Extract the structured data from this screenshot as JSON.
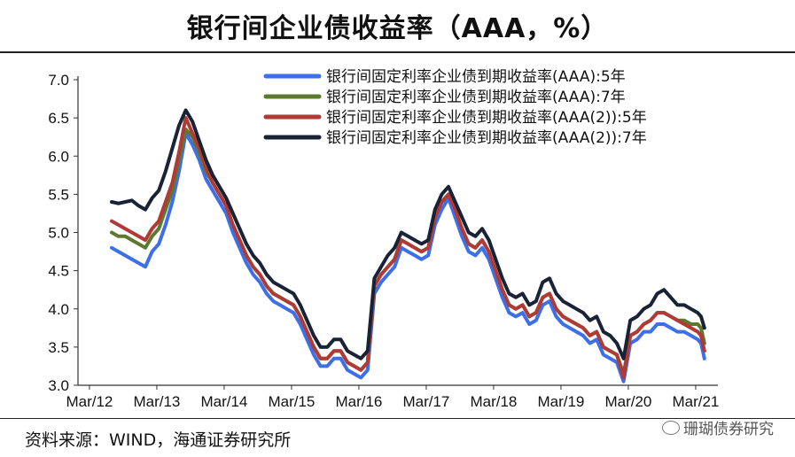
{
  "title": "银行间企业债收益率（AAA，%）",
  "source": "资料来源：WIND，海通证券研究所",
  "watermark": "珊瑚债券研究",
  "chart_data": {
    "type": "line",
    "title": "银行间企业债收益率（AAA，%）",
    "ylim": [
      3.0,
      7.0
    ],
    "yticks": [
      "7.0",
      "6.5",
      "6.0",
      "5.5",
      "5.0",
      "4.5",
      "4.0",
      "3.5",
      "3.0"
    ],
    "xlim": [
      2012.0,
      2021.5
    ],
    "xticks": [
      {
        "label": "Mar/12",
        "x": 2012.17
      },
      {
        "label": "Mar/13",
        "x": 2013.17
      },
      {
        "label": "Mar/14",
        "x": 2014.17
      },
      {
        "label": "Mar/15",
        "x": 2015.17
      },
      {
        "label": "Mar/16",
        "x": 2016.17
      },
      {
        "label": "Mar/17",
        "x": 2017.17
      },
      {
        "label": "Mar/18",
        "x": 2018.17
      },
      {
        "label": "Mar/19",
        "x": 2019.17
      },
      {
        "label": "Mar/20",
        "x": 2020.17
      },
      {
        "label": "Mar/21",
        "x": 2021.17
      }
    ],
    "legend_position": "top-right",
    "x": [
      2012.5,
      2012.6,
      2012.7,
      2012.8,
      2012.9,
      2013.0,
      2013.1,
      2013.2,
      2013.3,
      2013.4,
      2013.5,
      2013.6,
      2013.7,
      2013.8,
      2013.9,
      2014.0,
      2014.1,
      2014.2,
      2014.3,
      2014.4,
      2014.5,
      2014.6,
      2014.7,
      2014.8,
      2014.9,
      2015.0,
      2015.1,
      2015.2,
      2015.3,
      2015.4,
      2015.5,
      2015.6,
      2015.7,
      2015.8,
      2015.9,
      2016.0,
      2016.1,
      2016.2,
      2016.3,
      2016.4,
      2016.5,
      2016.6,
      2016.7,
      2016.8,
      2016.9,
      2017.0,
      2017.1,
      2017.2,
      2017.3,
      2017.4,
      2017.5,
      2017.6,
      2017.7,
      2017.8,
      2017.9,
      2018.0,
      2018.1,
      2018.2,
      2018.3,
      2018.4,
      2018.5,
      2018.6,
      2018.7,
      2018.8,
      2018.9,
      2019.0,
      2019.1,
      2019.2,
      2019.3,
      2019.4,
      2019.5,
      2019.6,
      2019.7,
      2019.8,
      2019.9,
      2020.0,
      2020.1,
      2020.2,
      2020.3,
      2020.4,
      2020.5,
      2020.6,
      2020.7,
      2020.8,
      2020.9,
      2021.0,
      2021.1,
      2021.2,
      2021.25,
      2021.3
    ],
    "series": [
      {
        "name": "银行间固定利率企业债到期收益率(AAA):5年",
        "color": "#3c6fe8",
        "values": [
          4.8,
          4.75,
          4.7,
          4.65,
          4.6,
          4.55,
          4.75,
          4.85,
          5.1,
          5.4,
          5.8,
          6.3,
          6.15,
          5.95,
          5.7,
          5.55,
          5.4,
          5.25,
          5.0,
          4.8,
          4.6,
          4.45,
          4.35,
          4.2,
          4.1,
          4.05,
          4.0,
          3.95,
          3.8,
          3.6,
          3.4,
          3.25,
          3.25,
          3.35,
          3.35,
          3.2,
          3.15,
          3.1,
          3.2,
          4.2,
          4.35,
          4.45,
          4.55,
          4.8,
          4.75,
          4.7,
          4.65,
          4.7,
          5.1,
          5.3,
          5.45,
          5.2,
          4.95,
          4.75,
          4.7,
          4.8,
          4.65,
          4.4,
          4.15,
          3.95,
          3.9,
          3.95,
          3.8,
          3.85,
          4.05,
          4.1,
          3.9,
          3.8,
          3.75,
          3.7,
          3.65,
          3.55,
          3.6,
          3.4,
          3.35,
          3.3,
          3.05,
          3.55,
          3.6,
          3.7,
          3.7,
          3.8,
          3.8,
          3.75,
          3.7,
          3.7,
          3.65,
          3.6,
          3.55,
          3.35
        ]
      },
      {
        "name": "银行间固定利率企业债到期收益率(AAA):7年",
        "color": "#5b7a2e",
        "values": [
          5.0,
          4.95,
          4.95,
          4.9,
          4.85,
          4.8,
          4.95,
          5.05,
          5.3,
          5.55,
          5.95,
          6.35,
          6.25,
          6.05,
          5.8,
          5.65,
          5.5,
          5.35,
          5.1,
          4.9,
          4.7,
          4.55,
          4.45,
          4.3,
          4.2,
          4.15,
          4.1,
          4.05,
          3.9,
          3.7,
          3.5,
          3.35,
          3.35,
          3.45,
          3.45,
          3.3,
          3.25,
          3.2,
          3.3,
          4.3,
          4.45,
          4.55,
          4.65,
          4.9,
          4.85,
          4.8,
          4.75,
          4.8,
          5.2,
          5.4,
          5.5,
          5.3,
          5.05,
          4.85,
          4.8,
          4.9,
          4.75,
          4.5,
          4.25,
          4.05,
          4.0,
          4.05,
          3.9,
          3.95,
          4.15,
          4.2,
          4.0,
          3.9,
          3.85,
          3.8,
          3.75,
          3.65,
          3.7,
          3.5,
          3.45,
          3.4,
          3.15,
          3.65,
          3.7,
          3.8,
          3.85,
          3.95,
          3.95,
          3.9,
          3.85,
          3.85,
          3.8,
          3.8,
          3.75,
          3.55
        ]
      },
      {
        "name": "银行间固定利率企业债到期收益率(AAA(2)):5年",
        "color": "#b03a35",
        "values": [
          5.15,
          5.1,
          5.05,
          5.0,
          4.95,
          4.9,
          5.05,
          5.15,
          5.4,
          5.65,
          6.05,
          6.5,
          6.3,
          6.1,
          5.85,
          5.65,
          5.5,
          5.35,
          5.1,
          4.9,
          4.7,
          4.55,
          4.45,
          4.3,
          4.2,
          4.15,
          4.1,
          4.05,
          3.9,
          3.7,
          3.5,
          3.35,
          3.35,
          3.45,
          3.45,
          3.3,
          3.25,
          3.2,
          3.3,
          4.3,
          4.45,
          4.55,
          4.65,
          4.9,
          4.85,
          4.8,
          4.75,
          4.8,
          5.2,
          5.4,
          5.5,
          5.3,
          5.05,
          4.85,
          4.8,
          4.9,
          4.75,
          4.5,
          4.25,
          4.05,
          4.0,
          4.05,
          3.9,
          3.95,
          4.15,
          4.2,
          4.0,
          3.9,
          3.85,
          3.8,
          3.75,
          3.65,
          3.7,
          3.5,
          3.45,
          3.4,
          3.1,
          3.65,
          3.7,
          3.8,
          3.85,
          3.95,
          3.95,
          3.9,
          3.85,
          3.8,
          3.75,
          3.7,
          3.65,
          3.45
        ]
      },
      {
        "name": "银行间固定利率企业债到期收益率(AAA(2)):7年",
        "color": "#1a2336",
        "values": [
          5.4,
          5.38,
          5.4,
          5.42,
          5.35,
          5.3,
          5.45,
          5.55,
          5.8,
          6.1,
          6.4,
          6.6,
          6.45,
          6.2,
          5.95,
          5.75,
          5.6,
          5.45,
          5.25,
          5.05,
          4.85,
          4.7,
          4.6,
          4.45,
          4.35,
          4.3,
          4.25,
          4.2,
          4.05,
          3.85,
          3.65,
          3.5,
          3.5,
          3.6,
          3.6,
          3.45,
          3.4,
          3.35,
          3.45,
          4.4,
          4.55,
          4.7,
          4.8,
          5.0,
          4.95,
          4.9,
          4.85,
          4.9,
          5.3,
          5.5,
          5.6,
          5.4,
          5.2,
          5.0,
          4.95,
          5.05,
          4.9,
          4.65,
          4.4,
          4.2,
          4.15,
          4.2,
          4.05,
          4.1,
          4.35,
          4.4,
          4.2,
          4.1,
          4.05,
          4.0,
          3.95,
          3.85,
          3.9,
          3.7,
          3.65,
          3.55,
          3.35,
          3.85,
          3.9,
          4.0,
          4.05,
          4.2,
          4.25,
          4.15,
          4.05,
          4.05,
          4.0,
          3.95,
          3.9,
          3.75
        ]
      }
    ]
  }
}
